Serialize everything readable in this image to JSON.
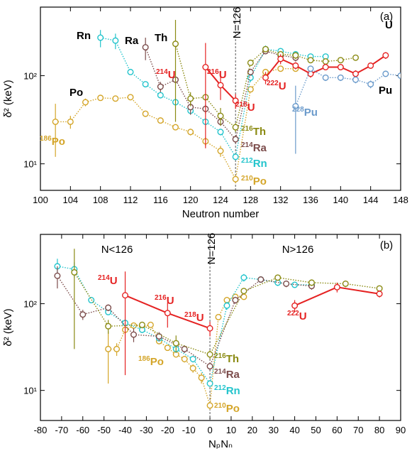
{
  "chart_data": [
    {
      "type": "line",
      "panel_label": "(a)",
      "xlabel": "Neutron number",
      "ylabel": "δ² (keV)",
      "log_y": true,
      "xlim": [
        100,
        148
      ],
      "xticks": [
        100,
        104,
        108,
        112,
        116,
        120,
        124,
        128,
        132,
        136,
        140,
        144,
        148
      ],
      "ylim": [
        5,
        600
      ],
      "yticks": [
        {
          "value": 10,
          "label": "10¹"
        },
        {
          "value": 100,
          "label": "10²"
        }
      ],
      "ref_line": {
        "value": 126,
        "label": "N=126"
      },
      "series": [
        {
          "name": "Po",
          "color": "#d4a528",
          "line_style": "dotted",
          "x": [
            102,
            104,
            106,
            108,
            110,
            112,
            114,
            116,
            118,
            120,
            122,
            124,
            126,
            128,
            130,
            132,
            134
          ],
          "values": [
            30,
            30,
            50,
            56,
            55,
            57,
            37,
            31,
            26,
            23,
            18,
            14,
            6.7,
            70,
            110,
            120,
            120
          ],
          "errors": [
            18,
            5,
            5,
            4,
            4,
            4,
            3,
            2,
            2,
            2,
            2,
            2,
            0.7,
            5,
            8,
            8,
            8
          ]
        },
        {
          "name": "Rn",
          "color": "#22c4cc",
          "line_style": "dotted",
          "x": [
            108,
            110,
            112,
            114,
            116,
            118,
            120,
            122,
            124,
            126,
            128,
            130,
            132,
            134,
            136,
            138
          ],
          "values": [
            270,
            250,
            110,
            80,
            60,
            50,
            40,
            30,
            23,
            12,
            95,
            200,
            190,
            175,
            165,
            165
          ],
          "errors": [
            60,
            50,
            8,
            6,
            4,
            4,
            3,
            2,
            2,
            1,
            10,
            20,
            15,
            15,
            12,
            12
          ]
        },
        {
          "name": "Ra",
          "color": "#7b4b4a",
          "line_style": "dotted",
          "x": [
            114,
            116,
            118,
            120,
            122,
            124,
            126,
            128,
            130,
            132,
            134
          ],
          "values": [
            210,
            75,
            90,
            44,
            42,
            30,
            19,
            110,
            190,
            170,
            160
          ],
          "errors": [
            60,
            10,
            8,
            8,
            5,
            3,
            2,
            10,
            15,
            15,
            15
          ]
        },
        {
          "name": "Th",
          "color": "#8a8a12",
          "line_style": "dotted",
          "x": [
            118,
            120,
            122,
            124,
            126,
            128,
            130,
            132,
            134,
            136,
            138,
            140,
            142
          ],
          "values": [
            230,
            55,
            57,
            35,
            26,
            140,
            200,
            175,
            170,
            150,
            145,
            150,
            160
          ],
          "errors": [
            200,
            10,
            5,
            8,
            3,
            10,
            15,
            15,
            15,
            10,
            10,
            10,
            10
          ]
        },
        {
          "name": "U",
          "color": "#e52222",
          "line_style": "solid",
          "x": [
            122,
            124,
            126,
            128,
            130,
            132,
            134,
            136,
            138,
            140,
            142,
            144,
            146
          ],
          "values": [
            125,
            78,
            52,
            null,
            95,
            155,
            130,
            105,
            125,
            125,
            105,
            130,
            170
          ],
          "errors": [
            110,
            25,
            10,
            null,
            15,
            20,
            12,
            10,
            10,
            10,
            10,
            10,
            15
          ]
        },
        {
          "name": "Pu",
          "color": "#6a9acb",
          "line_style": "dotted",
          "x": [
            134,
            136,
            138,
            140,
            142,
            144,
            146,
            148
          ],
          "values": [
            45,
            120,
            95,
            95,
            90,
            80,
            105,
            100
          ],
          "errors": [
            32,
            10,
            8,
            8,
            8,
            8,
            8,
            8
          ]
        }
      ],
      "annotations": [
        {
          "sup": "186",
          "text": "Po",
          "color": "#d4a528"
        },
        {
          "sup": "214",
          "text": "U",
          "color": "#e52222"
        },
        {
          "sup": "216",
          "text": "U",
          "color": "#e52222"
        },
        {
          "sup": "218",
          "text": "U",
          "color": "#e52222"
        },
        {
          "sup": "216",
          "text": "Th",
          "color": "#8a8a12"
        },
        {
          "sup": "214",
          "text": "Ra",
          "color": "#7b4b4a"
        },
        {
          "sup": "212",
          "text": "Rn",
          "color": "#22c4cc"
        },
        {
          "sup": "210",
          "text": "Po",
          "color": "#d4a528"
        },
        {
          "sup": "222",
          "text": "U",
          "color": "#e52222"
        },
        {
          "sup": "228",
          "text": "Pu",
          "color": "#6a9acb"
        }
      ]
    },
    {
      "type": "line",
      "panel_label": "(b)",
      "xlabel": "NₚNₙ",
      "ylabel": "δ² (keV)",
      "log_y": true,
      "xlim": [
        -80,
        90
      ],
      "xticks": [
        -80,
        -70,
        -60,
        -50,
        -40,
        -30,
        -20,
        -10,
        0,
        10,
        20,
        30,
        40,
        50,
        60,
        70,
        80,
        90
      ],
      "ylim": [
        4.5,
        630
      ],
      "yticks": [
        {
          "value": 10,
          "label": "10¹"
        },
        {
          "value": 100,
          "label": "10²"
        }
      ],
      "ref_line": {
        "value": 0,
        "label": "N=126"
      },
      "region_labels": [
        "N<126",
        "N>126"
      ],
      "series": [
        {
          "color": "#d4a528",
          "line_style": "dotted",
          "x": [
            -48,
            -44,
            -40,
            -36,
            -32,
            -28,
            -24,
            -20,
            -16,
            -12,
            -8,
            -4,
            0,
            4,
            8,
            12,
            16
          ],
          "values": [
            30,
            30,
            50,
            56,
            55,
            57,
            37,
            31,
            26,
            23,
            18,
            14,
            6.7,
            70,
            110,
            120,
            120
          ],
          "errors": [
            18,
            5,
            5,
            4,
            4,
            4,
            3,
            2,
            2,
            2,
            2,
            2,
            0.7,
            5,
            8,
            8,
            8
          ]
        },
        {
          "color": "#22c4cc",
          "line_style": "dotted",
          "x": [
            -72,
            -64,
            -56,
            -48,
            -40,
            -32,
            -24,
            -16,
            -8,
            0,
            8,
            16,
            24,
            32,
            40,
            48
          ],
          "values": [
            270,
            250,
            110,
            80,
            60,
            50,
            40,
            30,
            23,
            12,
            95,
            200,
            190,
            175,
            165,
            165
          ],
          "errors": [
            60,
            50,
            8,
            6,
            4,
            4,
            3,
            2,
            2,
            1,
            10,
            20,
            15,
            15,
            12,
            12
          ]
        },
        {
          "color": "#7b4b4a",
          "line_style": "dotted",
          "x": [
            -72,
            -60,
            -48,
            -36,
            -24,
            -12,
            0,
            12,
            24,
            36,
            48
          ],
          "values": [
            210,
            75,
            90,
            44,
            42,
            30,
            19,
            110,
            190,
            170,
            160
          ],
          "errors": [
            60,
            10,
            8,
            8,
            5,
            3,
            2,
            10,
            15,
            15,
            15
          ]
        },
        {
          "color": "#8a8a12",
          "line_style": "dotted",
          "x": [
            -64,
            -48,
            -32,
            -16,
            0,
            16,
            32,
            48,
            64,
            80
          ],
          "values": [
            230,
            55,
            57,
            35,
            26,
            140,
            200,
            175,
            170,
            150
          ],
          "errors": [
            200,
            10,
            5,
            8,
            3,
            10,
            15,
            15,
            15,
            10
          ]
        },
        {
          "color": "#e52222",
          "line_style": "solid",
          "x": [
            -40,
            -20,
            0,
            20,
            40,
            60,
            80
          ],
          "values": [
            125,
            78,
            52,
            null,
            95,
            155,
            130
          ],
          "errors": [
            110,
            25,
            10,
            null,
            15,
            20,
            12
          ]
        }
      ],
      "annotations": [
        {
          "sup": "214",
          "text": "U",
          "color": "#e52222"
        },
        {
          "sup": "216",
          "text": "U",
          "color": "#e52222"
        },
        {
          "sup": "218",
          "text": "U",
          "color": "#e52222"
        },
        {
          "sup": "186",
          "text": "Po",
          "color": "#d4a528"
        },
        {
          "sup": "216",
          "text": "Th",
          "color": "#8a8a12"
        },
        {
          "sup": "214",
          "text": "Ra",
          "color": "#7b4b4a"
        },
        {
          "sup": "212",
          "text": "Rn",
          "color": "#22c4cc"
        },
        {
          "sup": "210",
          "text": "Po",
          "color": "#d4a528"
        },
        {
          "sup": "222",
          "text": "U",
          "color": "#e52222"
        }
      ]
    }
  ]
}
